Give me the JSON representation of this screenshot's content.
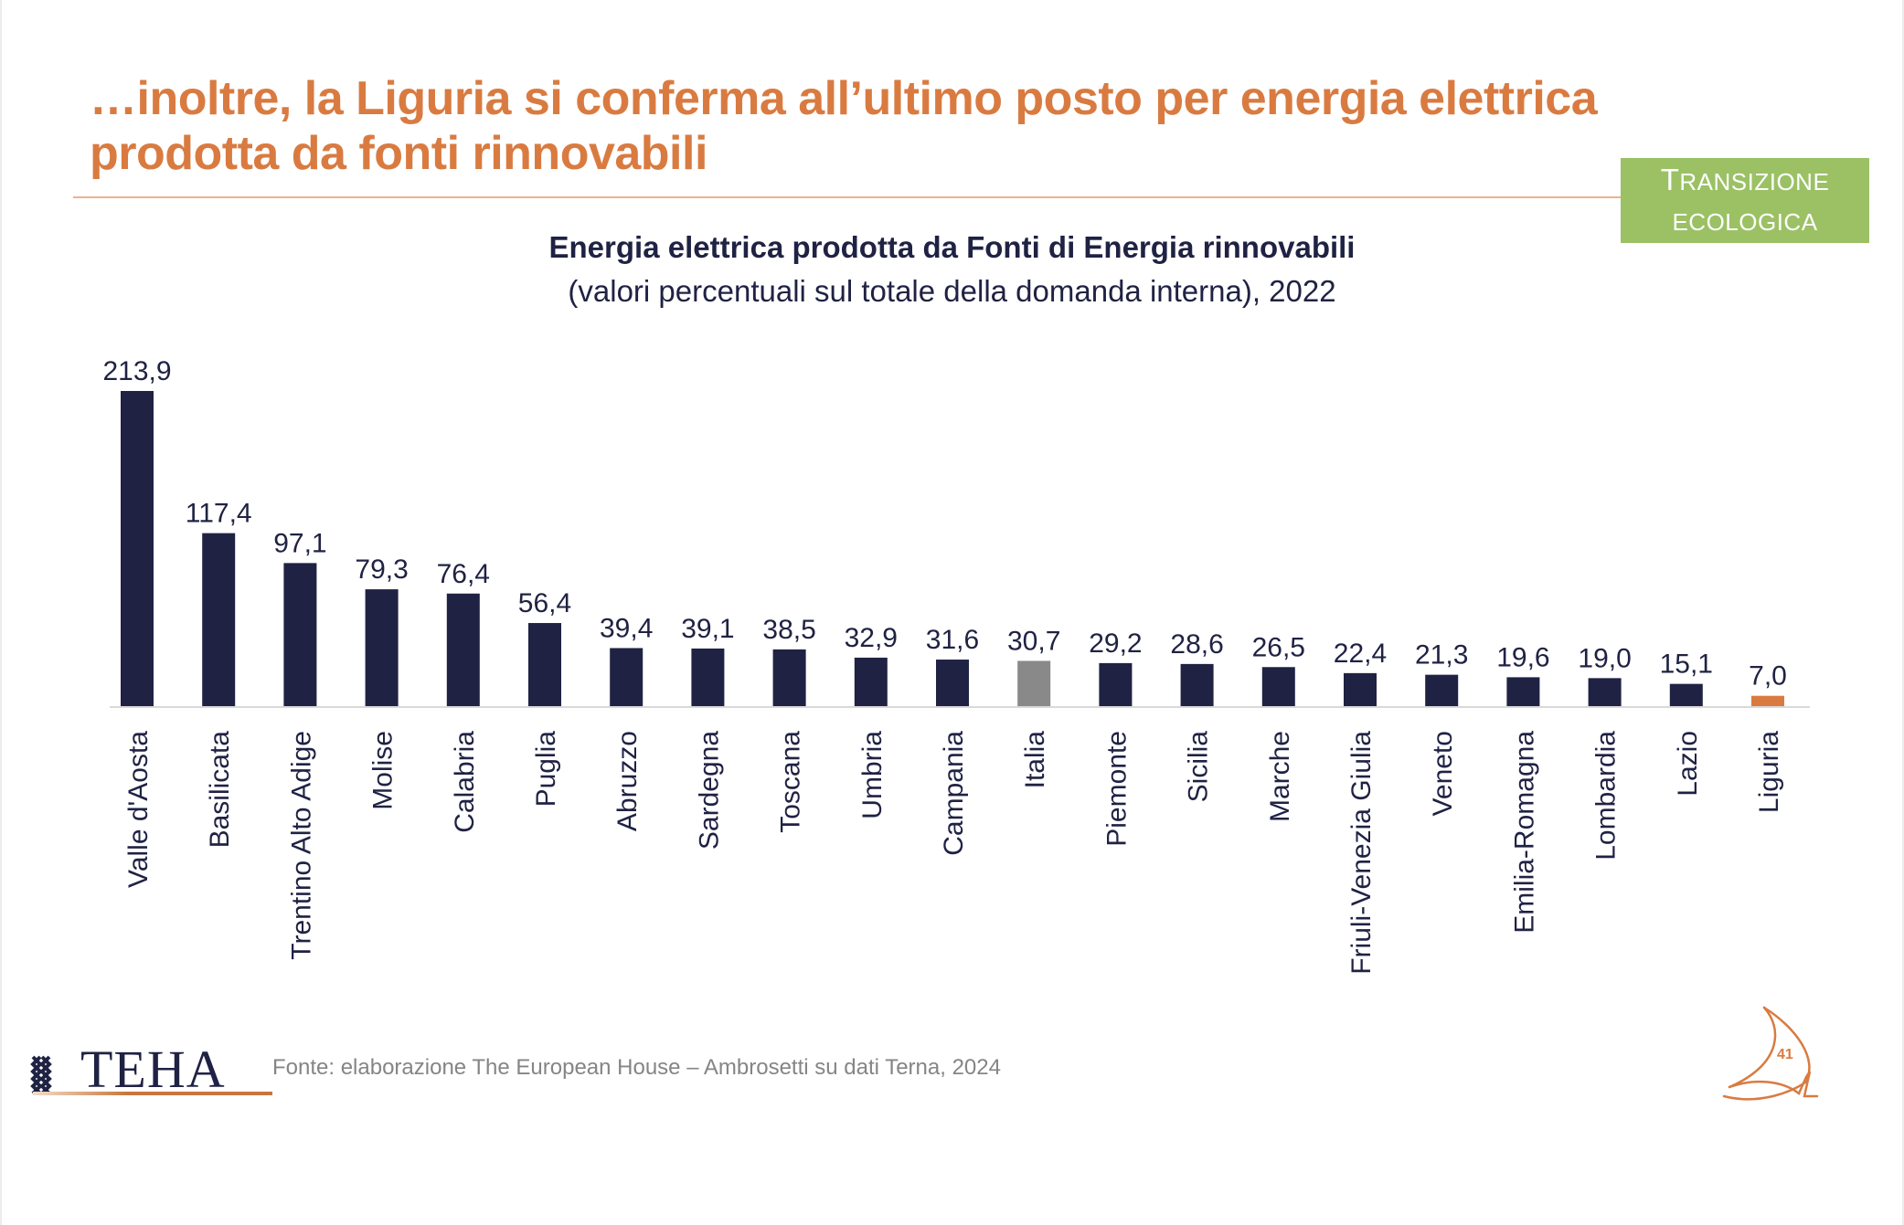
{
  "slide": {
    "title_line1": "…inoltre, la Liguria si conferma all’ultimo posto per energia elettrica",
    "title_line2": "prodotta da fonti rinnovabili",
    "badge_line1_first": "T",
    "badge_line1_rest": "RANSIZIONE",
    "badge_line2": "ECOLOGICA",
    "source": "Fonte: elaborazione The European House – Ambrosetti su dati Terna, 2024",
    "logo_text": "TEHA",
    "page_number": "41"
  },
  "colors": {
    "title": "#D97B41",
    "badge": "#9BC164",
    "bar_default": "#1F2243",
    "bar_italia": "#898989",
    "bar_liguria": "#D97B41",
    "axis": "#D9D9D9",
    "text_dark": "#1F2243",
    "source_text": "#858585"
  },
  "chart_data": {
    "type": "bar",
    "title": "Energia elettrica prodotta da Fonti di Energia rinnovabili",
    "subtitle": "(valori percentuali sul totale della domanda interna), 2022",
    "xlabel": "",
    "ylabel": "",
    "ylim": [
      0,
      213.9
    ],
    "grid": false,
    "legend": "none",
    "categories": [
      "Valle d'Aosta",
      "Basilicata",
      "Trentino Alto Adige",
      "Molise",
      "Calabria",
      "Puglia",
      "Abruzzo",
      "Sardegna",
      "Toscana",
      "Umbria",
      "Campania",
      "Italia",
      "Piemonte",
      "Sicilia",
      "Marche",
      "Friuli-Venezia Giulia",
      "Veneto",
      "Emilia-Romagna",
      "Lombardia",
      "Lazio",
      "Liguria"
    ],
    "values": [
      213.9,
      117.4,
      97.1,
      79.3,
      76.4,
      56.4,
      39.4,
      39.1,
      38.5,
      32.9,
      31.6,
      30.7,
      29.2,
      28.6,
      26.5,
      22.4,
      21.3,
      19.6,
      19.0,
      15.1,
      7.0
    ],
    "value_labels": [
      "213,9",
      "117,4",
      "97,1",
      "79,3",
      "76,4",
      "56,4",
      "39,4",
      "39,1",
      "38,5",
      "32,9",
      "31,6",
      "30,7",
      "29,2",
      "28,6",
      "26,5",
      "22,4",
      "21,3",
      "19,6",
      "19,0",
      "15,1",
      "7,0"
    ],
    "highlights": {
      "Italia": "bar_italia",
      "Liguria": "bar_liguria"
    }
  }
}
